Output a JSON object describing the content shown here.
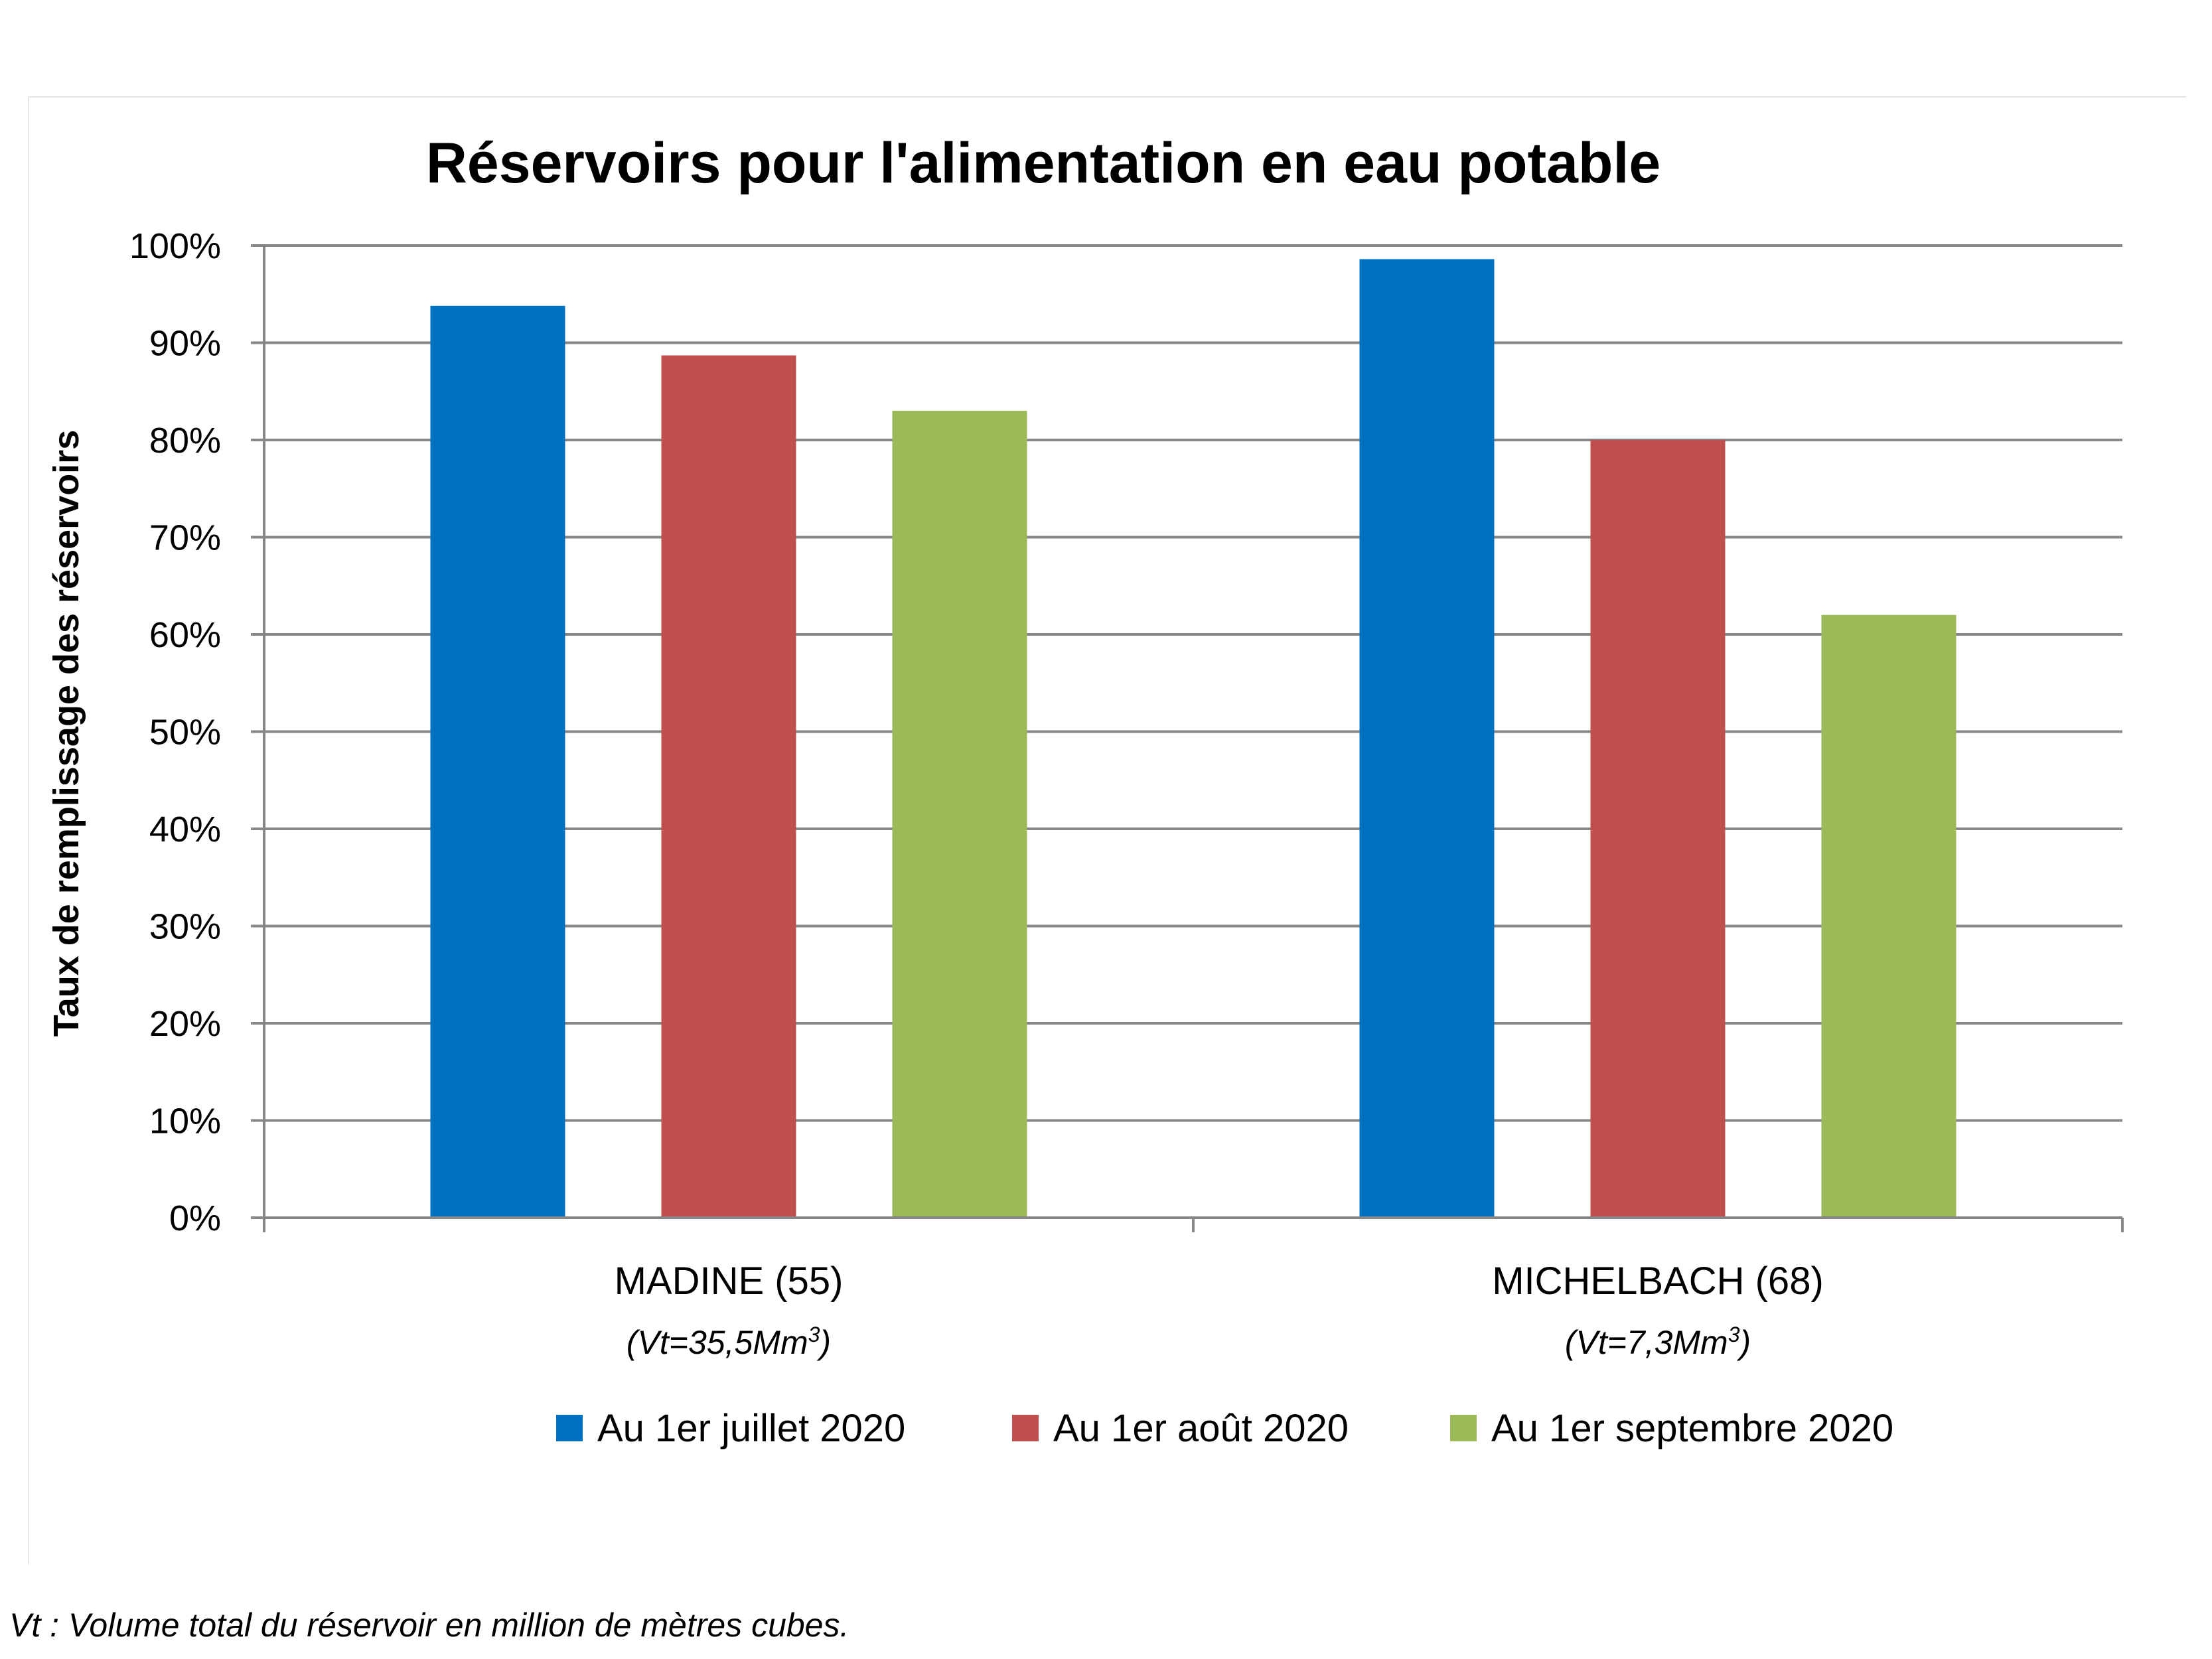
{
  "chart_data": {
    "type": "bar",
    "title": "Réservoirs pour l'alimentation en eau potable",
    "ylabel": "Taux de remplissage des réservoirs",
    "xlabel": "",
    "ylim": [
      0,
      100
    ],
    "y_ticks": [
      "0%",
      "10%",
      "20%",
      "30%",
      "40%",
      "50%",
      "60%",
      "70%",
      "80%",
      "90%",
      "100%"
    ],
    "grid": true,
    "legend_position": "bottom",
    "categories": [
      {
        "name": "MADINE (55)",
        "sub_prefix": "(Vt=35,5Mm",
        "sub_sup": "3",
        "sub_suffix": ")"
      },
      {
        "name": "MICHELBACH (68)",
        "sub_prefix": "(Vt=7,3Mm",
        "sub_sup": "3",
        "sub_suffix": ")"
      }
    ],
    "series": [
      {
        "name": "Au 1er juillet 2020",
        "color": "#0070C0",
        "values": [
          93.8,
          98.6
        ]
      },
      {
        "name": "Au 1er août 2020",
        "color": "#C0504D",
        "values": [
          88.7,
          80.0
        ]
      },
      {
        "name": "Au 1er septembre 2020",
        "color": "#9BBB59",
        "values": [
          83.0,
          62.0
        ]
      }
    ]
  },
  "footnote": "Vt : Volume total du réservoir en million de mètres cubes."
}
